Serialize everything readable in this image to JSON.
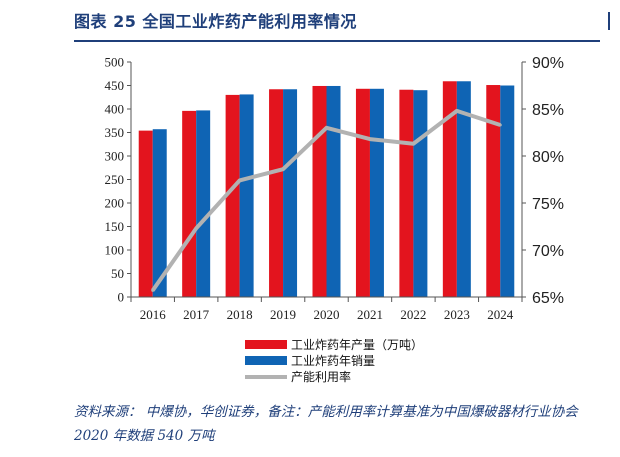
{
  "header": {
    "title": "图表 25  全国工业炸药产能利用率情况"
  },
  "footer": {
    "source": "资料来源：  中爆协，华创证券，备注：产能利用率计算基准为中国爆破器材行业协会 2020 年数据 540 万吨"
  },
  "colors": {
    "production": "#e3141e",
    "sales": "#0f64b4",
    "utilization": "#b2b2b2",
    "title": "#1f3f7a"
  },
  "chart_data": {
    "type": "bar",
    "title": "",
    "xlabel": "",
    "ylabel": "",
    "categories": [
      "2016",
      "2017",
      "2018",
      "2019",
      "2020",
      "2021",
      "2022",
      "2023",
      "2024"
    ],
    "series": [
      {
        "name": "工业炸药年产量（万吨）",
        "type": "bar",
        "axis": "left",
        "values": [
          354,
          396,
          430,
          442,
          449,
          443,
          441,
          459,
          451
        ]
      },
      {
        "name": "工业炸药年销量",
        "type": "bar",
        "axis": "left",
        "values": [
          357,
          397,
          431,
          442,
          449,
          443,
          440,
          459,
          450
        ]
      },
      {
        "name": "产能利用率",
        "type": "line",
        "axis": "right",
        "values": [
          65.7,
          72.3,
          77.4,
          78.6,
          83.0,
          81.8,
          81.3,
          84.8,
          83.3
        ]
      }
    ],
    "ylim_left": [
      0,
      500
    ],
    "yticks_left": [
      "0",
      "50",
      "100",
      "150",
      "200",
      "250",
      "300",
      "350",
      "400",
      "450",
      "500"
    ],
    "ylim_right": [
      65,
      90
    ],
    "yticks_right": [
      "65%",
      "70%",
      "75%",
      "80%",
      "85%",
      "90%"
    ],
    "grid": false,
    "legend_position": "bottom"
  }
}
